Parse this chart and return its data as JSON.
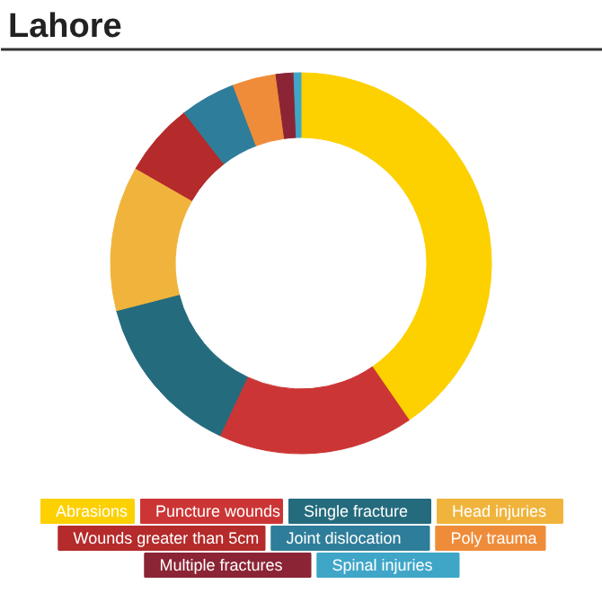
{
  "chart_data": {
    "type": "donut",
    "title": "Lahore",
    "categories": [
      "Abrasions",
      "Puncture wounds",
      "Single fracture",
      "Head injuries",
      "Wounds greater than 5cm",
      "Joint dislocation",
      "Poly trauma",
      "Multiple fractures",
      "Spinal injuries"
    ],
    "values": [
      40.4,
      16.6,
      14,
      12.3,
      6.2,
      4.7,
      3.7,
      1.5,
      0.6
    ],
    "colors": [
      "#fdd000",
      "#cc3535",
      "#246b7d",
      "#f0b43c",
      "#b52a2a",
      "#2e7d9a",
      "#ef8c3a",
      "#8b2435",
      "#3fa6c8"
    ],
    "legend": "bottom"
  }
}
